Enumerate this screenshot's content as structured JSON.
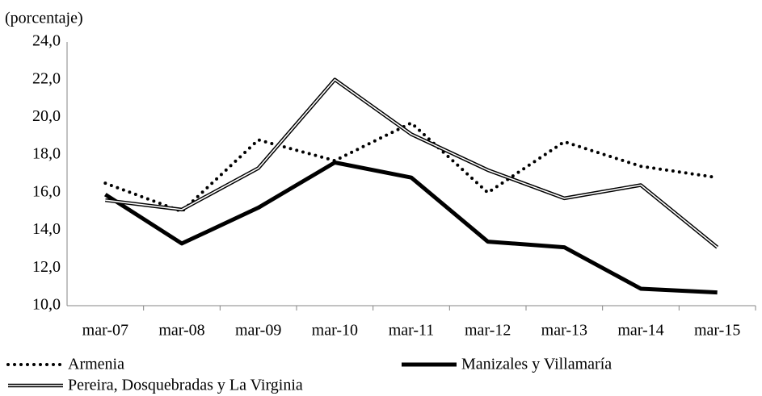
{
  "chart_data": {
    "type": "line",
    "y_label": "(porcentaje)",
    "categories": [
      "mar-07",
      "mar-08",
      "mar-09",
      "mar-10",
      "mar-11",
      "mar-12",
      "mar-13",
      "mar-14",
      "mar-15"
    ],
    "series": [
      {
        "name": "Armenia",
        "color": "#000000",
        "style": "dotted",
        "values": [
          16.5,
          15.0,
          18.8,
          17.7,
          19.7,
          16.0,
          18.7,
          17.4,
          16.8
        ]
      },
      {
        "name": "Manizales y Villamaría",
        "color": "#000000",
        "style": "solid",
        "values": [
          15.9,
          13.3,
          15.2,
          17.6,
          16.8,
          13.4,
          13.1,
          10.9,
          10.7
        ]
      },
      {
        "name": "Pereira, Dosquebradas y La Virginia",
        "color": "#000000",
        "style": "double",
        "values": [
          15.6,
          15.1,
          17.3,
          22.0,
          19.1,
          17.2,
          15.7,
          16.4,
          13.1
        ]
      }
    ],
    "ylim": [
      10,
      24
    ],
    "yticks": [
      {
        "value": 10,
        "label": "10,0"
      },
      {
        "value": 12,
        "label": "12,0"
      },
      {
        "value": 14,
        "label": "14,0"
      },
      {
        "value": 16,
        "label": "16,0"
      },
      {
        "value": 18,
        "label": "18,0"
      },
      {
        "value": 20,
        "label": "20,0"
      },
      {
        "value": 22,
        "label": "22,0"
      },
      {
        "value": 24,
        "label": "24,0"
      }
    ],
    "grid": false
  }
}
